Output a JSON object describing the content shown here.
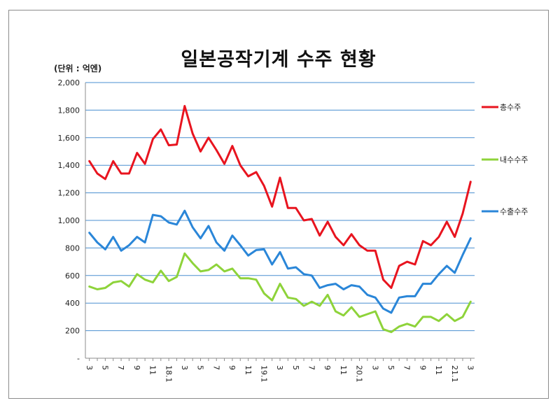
{
  "chart_data": {
    "type": "line",
    "title": "일본공작기계 수주 현황",
    "unit_label": "(단위 : 억엔)",
    "xlabel": "",
    "ylabel": "",
    "ylim": [
      0,
      2000
    ],
    "y_ticks": [
      0,
      200,
      400,
      600,
      800,
      1000,
      1200,
      1400,
      1600,
      1800,
      2000
    ],
    "y_tick_labels": [
      "-",
      "200",
      "400",
      "600",
      "800",
      "1,000",
      "1,200",
      "1,400",
      "1,600",
      "1,800",
      "2,000"
    ],
    "grid": true,
    "legend_position": "right",
    "x_tick_labels": [
      "3",
      "5",
      "7",
      "9",
      "11",
      "18.1",
      "3",
      "5",
      "7",
      "9",
      "11",
      "19.1",
      "3",
      "5",
      "7",
      "9",
      "11",
      "20.1",
      "3",
      "5",
      "7",
      "9",
      "11",
      "21.1",
      "3"
    ],
    "categories": [
      "17.3",
      "17.4",
      "17.5",
      "17.6",
      "17.7",
      "17.8",
      "17.9",
      "17.10",
      "17.11",
      "17.12",
      "18.1",
      "18.2",
      "18.3",
      "18.4",
      "18.5",
      "18.6",
      "18.7",
      "18.8",
      "18.9",
      "18.10",
      "18.11",
      "18.12",
      "19.1",
      "19.2",
      "19.3",
      "19.4",
      "19.5",
      "19.6",
      "19.7",
      "19.8",
      "19.9",
      "19.10",
      "19.11",
      "19.12",
      "20.1",
      "20.2",
      "20.3",
      "20.4",
      "20.5",
      "20.6",
      "20.7",
      "20.8",
      "20.9",
      "20.10",
      "20.11",
      "20.12",
      "21.1",
      "21.2",
      "21.3"
    ],
    "series": [
      {
        "name": "총수주",
        "color": "#e8141f",
        "values": [
          1430,
          1340,
          1300,
          1430,
          1340,
          1340,
          1490,
          1410,
          1590,
          1660,
          1545,
          1550,
          1830,
          1630,
          1500,
          1600,
          1510,
          1410,
          1540,
          1400,
          1320,
          1350,
          1250,
          1100,
          1310,
          1090,
          1090,
          1000,
          1010,
          890,
          990,
          880,
          820,
          900,
          820,
          780,
          780,
          570,
          510,
          670,
          700,
          680,
          850,
          820,
          880,
          990,
          880,
          1050,
          1280
        ]
      },
      {
        "name": "내수수주",
        "color": "#8ed33a",
        "values": [
          520,
          500,
          510,
          550,
          560,
          520,
          610,
          570,
          550,
          635,
          560,
          590,
          760,
          690,
          630,
          640,
          680,
          630,
          650,
          580,
          580,
          570,
          470,
          420,
          540,
          440,
          430,
          380,
          410,
          380,
          460,
          340,
          310,
          370,
          300,
          320,
          340,
          210,
          190,
          230,
          250,
          230,
          300,
          300,
          270,
          320,
          270,
          300,
          410
        ]
      },
      {
        "name": "수출수주",
        "color": "#2a86d8",
        "values": [
          910,
          840,
          790,
          880,
          780,
          820,
          880,
          840,
          1040,
          1030,
          985,
          970,
          1070,
          950,
          870,
          960,
          840,
          780,
          890,
          820,
          745,
          785,
          790,
          680,
          770,
          650,
          660,
          610,
          600,
          510,
          530,
          540,
          500,
          530,
          520,
          460,
          440,
          360,
          330,
          440,
          450,
          450,
          540,
          540,
          610,
          670,
          620,
          750,
          870
        ]
      }
    ]
  }
}
